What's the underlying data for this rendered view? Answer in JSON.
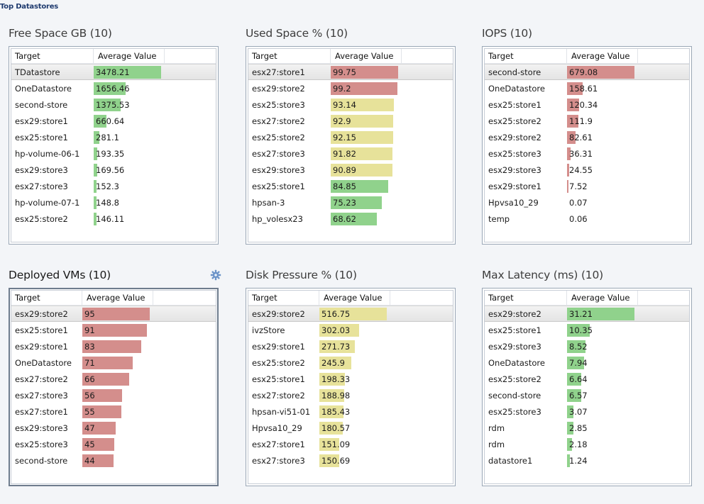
{
  "page_title": "Top Datastores",
  "column_headers": {
    "target": "Target",
    "average_value": "Average Value"
  },
  "colors": {
    "green": "#90d28c",
    "red": "#d48e8c",
    "yellow": "#e7e29a"
  },
  "panels": [
    {
      "title": "Free Space GB (10)",
      "color": "green",
      "max": 3478.21,
      "selected_row": 0,
      "rows": [
        {
          "target": "TDatastore",
          "value": "3478.21",
          "num": 3478.21
        },
        {
          "target": "OneDatastore",
          "value": "1656.46",
          "num": 1656.46
        },
        {
          "target": "second-store",
          "value": "1375.53",
          "num": 1375.53
        },
        {
          "target": "esx29:store1",
          "value": "660.64",
          "num": 660.64
        },
        {
          "target": "esx25:store1",
          "value": "281.1",
          "num": 281.1
        },
        {
          "target": "hp-volume-06-1",
          "value": "193.35",
          "num": 193.35
        },
        {
          "target": "esx29:store3",
          "value": "169.56",
          "num": 169.56
        },
        {
          "target": "esx27:store3",
          "value": "152.3",
          "num": 152.3
        },
        {
          "target": "hp-volume-07-1",
          "value": "148.8",
          "num": 148.8
        },
        {
          "target": "esx25:store2",
          "value": "146.11",
          "num": 146.11
        }
      ]
    },
    {
      "title": "Used Space % (10)",
      "color": "mixed",
      "max": 99.75,
      "selected_row": 0,
      "rows": [
        {
          "target": "esx27:store1",
          "value": "99.75",
          "num": 99.75,
          "color": "red"
        },
        {
          "target": "esx29:store2",
          "value": "99.2",
          "num": 99.2,
          "color": "red"
        },
        {
          "target": "esx25:store3",
          "value": "93.14",
          "num": 93.14,
          "color": "yellow"
        },
        {
          "target": "esx27:store2",
          "value": "92.9",
          "num": 92.9,
          "color": "yellow"
        },
        {
          "target": "esx25:store2",
          "value": "92.15",
          "num": 92.15,
          "color": "yellow"
        },
        {
          "target": "esx27:store3",
          "value": "91.82",
          "num": 91.82,
          "color": "yellow"
        },
        {
          "target": "esx29:store3",
          "value": "90.89",
          "num": 90.89,
          "color": "yellow"
        },
        {
          "target": "esx25:store1",
          "value": "84.85",
          "num": 84.85,
          "color": "green"
        },
        {
          "target": "hpsan-3",
          "value": "75.23",
          "num": 75.23,
          "color": "green"
        },
        {
          "target": "hp_volesx23",
          "value": "68.62",
          "num": 68.62,
          "color": "green"
        }
      ]
    },
    {
      "title": "IOPS (10)",
      "color": "red",
      "max": 679.08,
      "selected_row": 0,
      "rows": [
        {
          "target": "second-store",
          "value": "679.08",
          "num": 679.08
        },
        {
          "target": "OneDatastore",
          "value": "158.61",
          "num": 158.61
        },
        {
          "target": "esx25:store1",
          "value": "120.34",
          "num": 120.34
        },
        {
          "target": "esx25:store2",
          "value": "111.9",
          "num": 111.9
        },
        {
          "target": "esx29:store2",
          "value": "82.61",
          "num": 82.61
        },
        {
          "target": "esx25:store3",
          "value": "36.31",
          "num": 36.31
        },
        {
          "target": "esx29:store3",
          "value": "24.55",
          "num": 24.55
        },
        {
          "target": "esx29:store1",
          "value": "7.52",
          "num": 7.52
        },
        {
          "target": "Hpvsa10_29",
          "value": "0.07",
          "num": 0.07
        },
        {
          "target": "temp",
          "value": "0.06",
          "num": 0.06
        }
      ]
    },
    {
      "title": "Deployed VMs (10)",
      "color": "red",
      "max": 95,
      "selected_row": 0,
      "active": true,
      "settings_icon": "gear-icon",
      "rows": [
        {
          "target": "esx29:store2",
          "value": "95",
          "num": 95
        },
        {
          "target": "esx25:store1",
          "value": "91",
          "num": 91
        },
        {
          "target": "esx29:store1",
          "value": "83",
          "num": 83
        },
        {
          "target": "OneDatastore",
          "value": "71",
          "num": 71
        },
        {
          "target": "esx27:store2",
          "value": "66",
          "num": 66
        },
        {
          "target": "esx27:store3",
          "value": "56",
          "num": 56
        },
        {
          "target": "esx27:store1",
          "value": "55",
          "num": 55
        },
        {
          "target": "esx29:store3",
          "value": "47",
          "num": 47
        },
        {
          "target": "esx25:store3",
          "value": "45",
          "num": 45
        },
        {
          "target": "second-store",
          "value": "44",
          "num": 44
        }
      ]
    },
    {
      "title": "Disk Pressure % (10)",
      "color": "yellow",
      "max": 516.75,
      "selected_row": 0,
      "rows": [
        {
          "target": "esx29:store2",
          "value": "516.75",
          "num": 516.75
        },
        {
          "target": "ivzStore",
          "value": "302.03",
          "num": 302.03
        },
        {
          "target": "esx29:store1",
          "value": "271.73",
          "num": 271.73
        },
        {
          "target": "esx25:store2",
          "value": "245.9",
          "num": 245.9
        },
        {
          "target": "esx25:store1",
          "value": "198.33",
          "num": 198.33
        },
        {
          "target": "esx27:store2",
          "value": "188.98",
          "num": 188.98
        },
        {
          "target": "hpsan-vi51-01",
          "value": "185.43",
          "num": 185.43
        },
        {
          "target": "Hpvsa10_29",
          "value": "180.57",
          "num": 180.57
        },
        {
          "target": "esx27:store1",
          "value": "151.09",
          "num": 151.09
        },
        {
          "target": "esx27:store3",
          "value": "150.69",
          "num": 150.69
        }
      ]
    },
    {
      "title": "Max Latency (ms) (10)",
      "color": "green",
      "max": 31.21,
      "selected_row": 0,
      "rows": [
        {
          "target": "esx29:store2",
          "value": "31.21",
          "num": 31.21
        },
        {
          "target": "esx25:store1",
          "value": "10.35",
          "num": 10.35
        },
        {
          "target": "esx29:store3",
          "value": "8.52",
          "num": 8.52
        },
        {
          "target": "OneDatastore",
          "value": "7.94",
          "num": 7.94
        },
        {
          "target": "esx25:store2",
          "value": "6.64",
          "num": 6.64
        },
        {
          "target": "second-store",
          "value": "6.57",
          "num": 6.57
        },
        {
          "target": "esx25:store3",
          "value": "3.07",
          "num": 3.07
        },
        {
          "target": "rdm",
          "value": "2.85",
          "num": 2.85
        },
        {
          "target": "rdm",
          "value": "2.18",
          "num": 2.18
        },
        {
          "target": "datastore1",
          "value": "1.24",
          "num": 1.24
        }
      ]
    }
  ]
}
